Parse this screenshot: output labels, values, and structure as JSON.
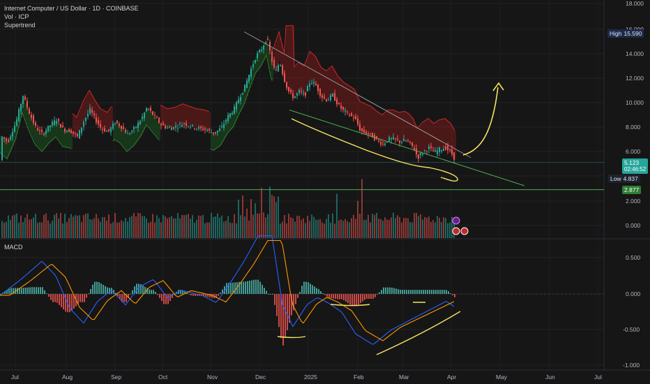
{
  "header": {
    "symbol_line": "Internet Computer / US Dollar · 1D · COINBASE",
    "volume_line": "Vol · ICP",
    "indicator_line": "Supertrend"
  },
  "macd_label": "MACD",
  "badges": {
    "high": {
      "label": "High",
      "value": "15.590"
    },
    "current": {
      "value": "5.123",
      "countdown": "02:46:52"
    },
    "low": {
      "label": "Low",
      "value": "4.837"
    },
    "support": {
      "value": "2.877"
    }
  },
  "colors": {
    "background": "#161616",
    "up": "#26a69a",
    "down": "#ef5350",
    "supertrend_up": "#1b5e20",
    "supertrend_down": "#8b1a1a",
    "annotation": "#f5e663",
    "macd_line": "#2962ff",
    "signal_line": "#ff9800",
    "support_line": "#4caf50",
    "high_badge": "#1e2a4a",
    "current_badge": "#26a69a",
    "support_badge": "#2e7d32"
  },
  "chart_data": {
    "type": "candlestick",
    "price_axis": {
      "ticks": [
        "18.000",
        "16.000",
        "14.000",
        "12.000",
        "10.000",
        "8.000",
        "6.000"
      ],
      "ylim": [
        2.8,
        18.0
      ]
    },
    "volume_axis": {
      "ticks": [
        "2.000",
        "0.000"
      ]
    },
    "macd_axis": {
      "ticks": [
        "0.500",
        "0.000",
        "-0.500",
        "-1.000"
      ]
    },
    "x_labels": [
      "Jul",
      "Aug",
      "Sep",
      "Oct",
      "Nov",
      "Dec",
      "2025",
      "Feb",
      "Mar",
      "Apr",
      "May",
      "Jun",
      "Jul"
    ],
    "price_path": [
      [
        0,
        7.3
      ],
      [
        10,
        6.8
      ],
      [
        22,
        8.4
      ],
      [
        32,
        10.6
      ],
      [
        40,
        9.3
      ],
      [
        50,
        8.0
      ],
      [
        60,
        7.4
      ],
      [
        70,
        8.1
      ],
      [
        80,
        8.6
      ],
      [
        90,
        7.8
      ],
      [
        100,
        7.7
      ],
      [
        110,
        7.2
      ],
      [
        120,
        8.6
      ],
      [
        128,
        9.4
      ],
      [
        136,
        8.6
      ],
      [
        144,
        7.9
      ],
      [
        154,
        7.6
      ],
      [
        164,
        8.4
      ],
      [
        172,
        8.1
      ],
      [
        182,
        7.4
      ],
      [
        192,
        7.9
      ],
      [
        202,
        8.7
      ],
      [
        210,
        9.6
      ],
      [
        220,
        8.9
      ],
      [
        230,
        8.2
      ],
      [
        240,
        7.9
      ],
      [
        250,
        8.0
      ],
      [
        262,
        8.3
      ],
      [
        272,
        8.1
      ],
      [
        282,
        7.9
      ],
      [
        294,
        7.8
      ],
      [
        306,
        7.5
      ],
      [
        316,
        7.9
      ],
      [
        326,
        8.9
      ],
      [
        334,
        9.4
      ],
      [
        342,
        10.4
      ],
      [
        350,
        11.3
      ],
      [
        358,
        12.6
      ],
      [
        366,
        13.8
      ],
      [
        374,
        14.4
      ],
      [
        382,
        15.3
      ],
      [
        388,
        13.6
      ],
      [
        394,
        12.4
      ],
      [
        400,
        13.4
      ],
      [
        406,
        12.0
      ],
      [
        412,
        11.0
      ],
      [
        420,
        10.4
      ],
      [
        428,
        10.9
      ],
      [
        436,
        10.6
      ],
      [
        444,
        11.8
      ],
      [
        452,
        11.4
      ],
      [
        460,
        10.5
      ],
      [
        468,
        10.2
      ],
      [
        476,
        10.6
      ],
      [
        484,
        9.8
      ],
      [
        492,
        9.3
      ],
      [
        500,
        9.0
      ],
      [
        508,
        8.7
      ],
      [
        516,
        7.7
      ],
      [
        524,
        7.5
      ],
      [
        532,
        7.3
      ],
      [
        540,
        6.9
      ],
      [
        548,
        6.6
      ],
      [
        556,
        7.0
      ],
      [
        564,
        7.0
      ],
      [
        572,
        6.8
      ],
      [
        580,
        6.9
      ],
      [
        586,
        6.7
      ],
      [
        592,
        6.3
      ],
      [
        598,
        5.5
      ],
      [
        606,
        6.0
      ],
      [
        614,
        6.3
      ],
      [
        622,
        5.9
      ],
      [
        630,
        6.2
      ],
      [
        638,
        6.3
      ],
      [
        646,
        5.9
      ],
      [
        652,
        5.3
      ]
    ],
    "annotations": {
      "descending_trendline": [
        [
          350,
          15.8
        ],
        [
          675,
          5.5
        ]
      ],
      "lower_trendline": [
        [
          415,
          9.4
        ],
        [
          752,
          3.2
        ]
      ],
      "support_level": 2.877,
      "current_level": 5.123
    }
  }
}
